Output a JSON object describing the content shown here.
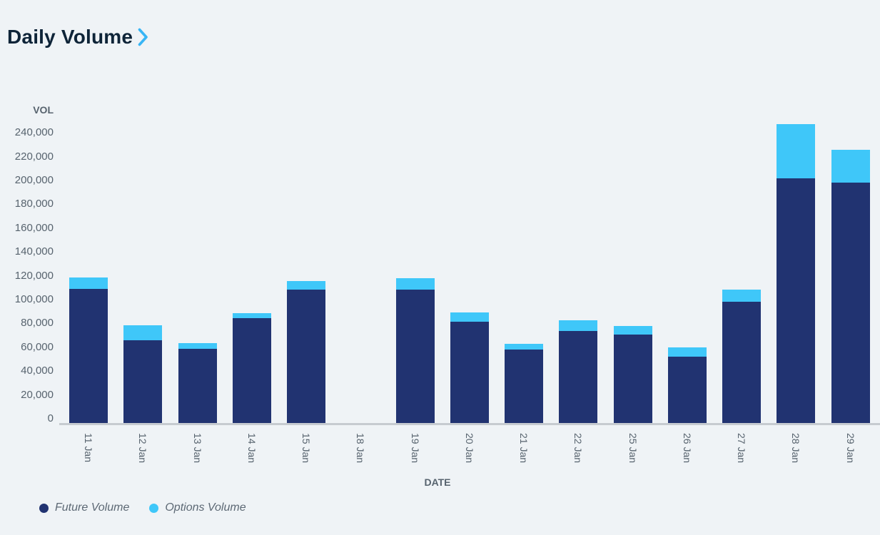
{
  "page": {
    "background_color": "#eff3f6"
  },
  "header": {
    "title": "Daily Volume",
    "chevron_icon": "chevron-right",
    "chevron_color": "#38b5f5",
    "title_color": "#0e2438"
  },
  "chart_data": {
    "type": "bar",
    "stacked": true,
    "title": "Daily Volume",
    "xlabel": "DATE",
    "ylabel": "VOL",
    "categories": [
      "11 Jan",
      "12 Jan",
      "13 Jan",
      "14 Jan",
      "15 Jan",
      "18 Jan",
      "19 Jan",
      "20 Jan",
      "21 Jan",
      "22 Jan",
      "25 Jan",
      "26 Jan",
      "27 Jan",
      "28 Jan",
      "29 Jan"
    ],
    "series": [
      {
        "name": "Future Volume",
        "color": "#213371",
        "values": [
          112500,
          69500,
          62000,
          88000,
          112000,
          0,
          112000,
          85000,
          61500,
          77500,
          74500,
          55500,
          102000,
          205500,
          202000
        ]
      },
      {
        "name": "Options Volume",
        "color": "#3fc7f9",
        "values": [
          9500,
          12500,
          5000,
          4500,
          7000,
          0,
          9500,
          8000,
          5000,
          8500,
          7000,
          8000,
          10000,
          45500,
          27500
        ]
      }
    ],
    "ylim": [
      0,
      240000
    ],
    "ytick_step": 20000,
    "ytick_labels": [
      "0",
      "20,000",
      "40,000",
      "60,000",
      "80,000",
      "100,000",
      "120,000",
      "140,000",
      "160,000",
      "180,000",
      "200,000",
      "220,000",
      "240,000"
    ],
    "grid": false,
    "legend_position": "bottom-left",
    "axis_text_color": "#57636e",
    "axis_line_color": "#c6cbd0"
  }
}
